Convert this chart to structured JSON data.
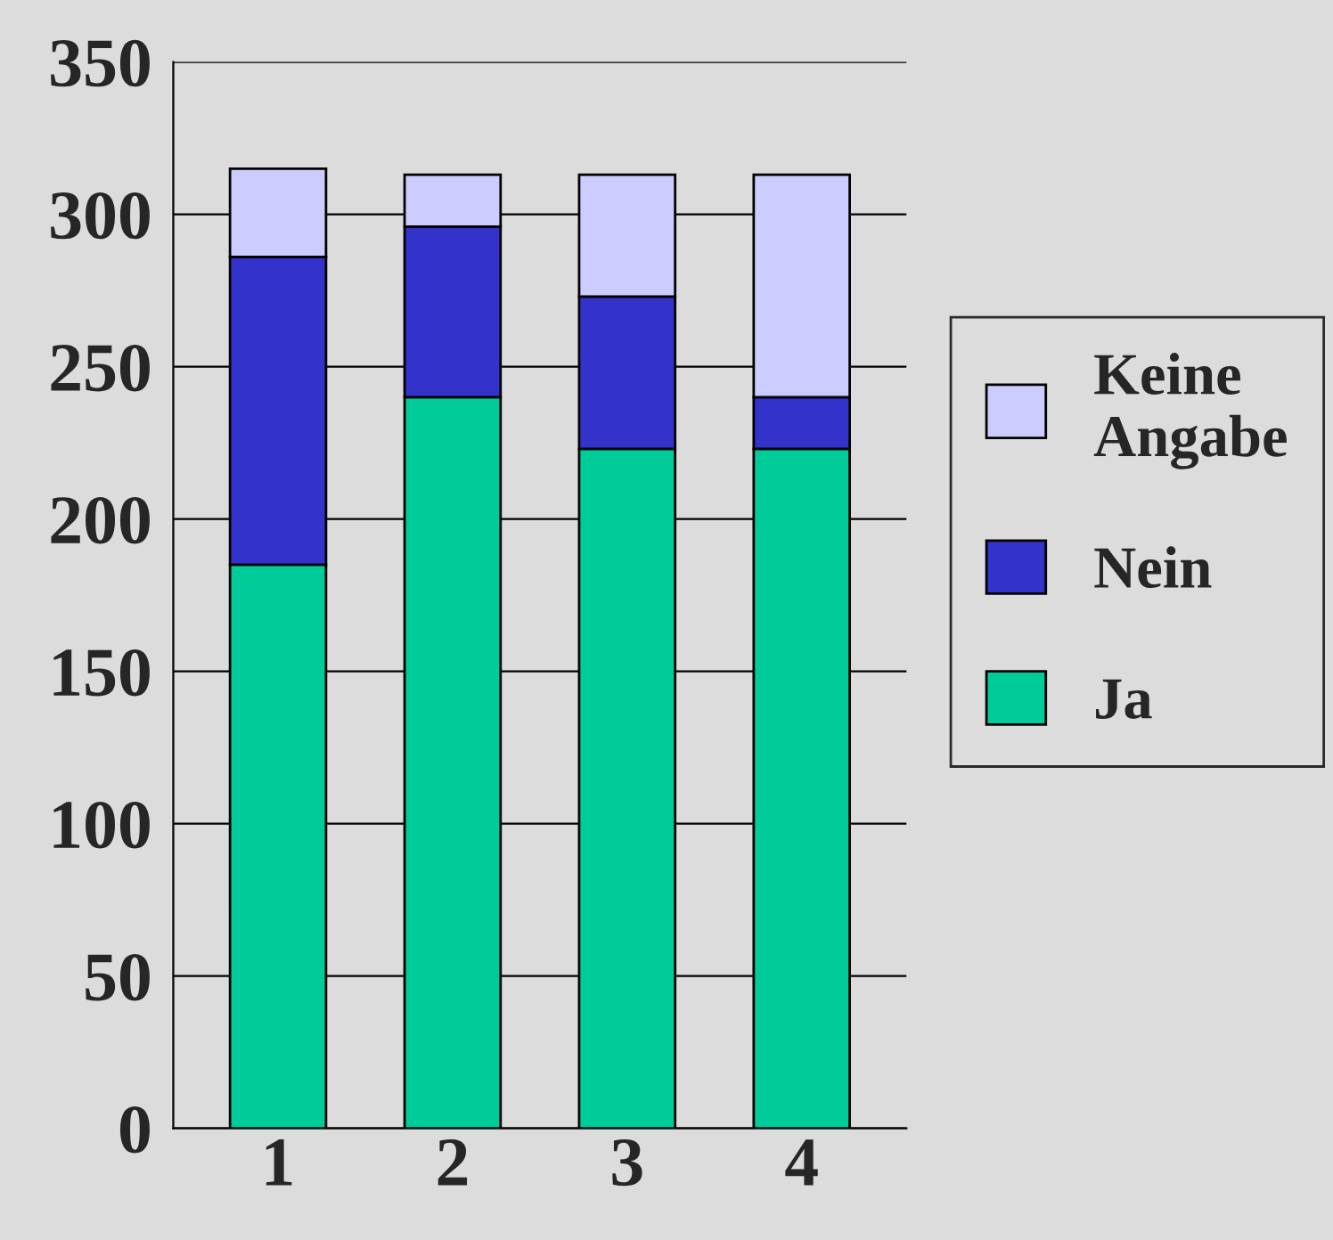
{
  "chart_data": {
    "type": "bar",
    "stacked": true,
    "categories": [
      "1",
      "2",
      "3",
      "4"
    ],
    "series": [
      {
        "name": "Ja",
        "color": "#00cc99",
        "values": [
          185,
          240,
          223,
          223
        ]
      },
      {
        "name": "Nein",
        "color": "#3333cc",
        "values": [
          101,
          56,
          50,
          17
        ]
      },
      {
        "name": "Keine Angabe",
        "color": "#ccccff",
        "values": [
          29,
          17,
          40,
          73
        ]
      }
    ],
    "ylim": [
      0,
      350
    ],
    "yticks": [
      0,
      50,
      100,
      150,
      200,
      250,
      300,
      350
    ],
    "grid": "y",
    "legend": "right"
  }
}
